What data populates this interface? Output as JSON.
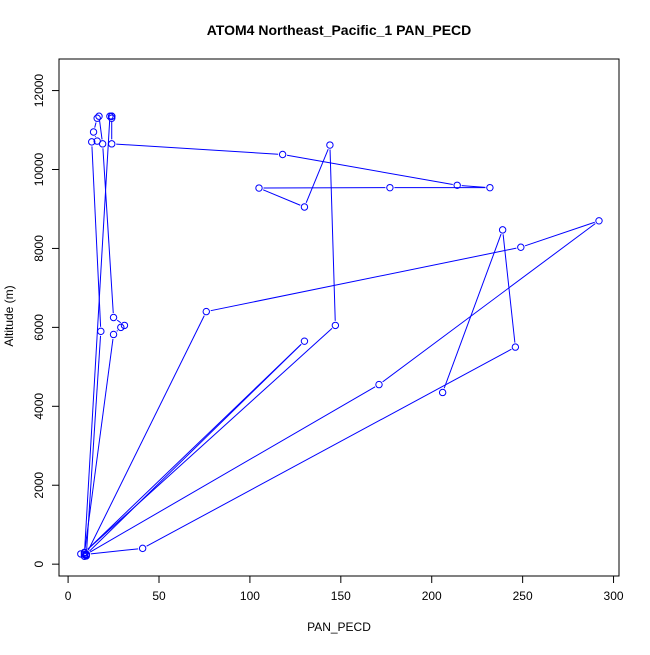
{
  "chart_data": {
    "type": "line",
    "title": "ATOM4 Northeast_Pacific_1 PAN_PECD",
    "xlabel": "PAN_PECD",
    "ylabel": "Altitude (m)",
    "xlim": [
      -5,
      303
    ],
    "ylim": [
      -300,
      12800
    ],
    "xticks": [
      0,
      50,
      100,
      150,
      200,
      250,
      300
    ],
    "yticks": [
      0,
      2000,
      4000,
      6000,
      8000,
      10000,
      12000
    ],
    "grid": false,
    "markers": "open-circle",
    "series": [
      {
        "color": "#0000ff",
        "points": [
          [
            7,
            260
          ],
          [
            9,
            240
          ],
          [
            10,
            230
          ],
          [
            9,
            200
          ],
          [
            10,
            210
          ],
          [
            18,
            5900
          ],
          [
            13,
            10700
          ],
          [
            16,
            10720
          ],
          [
            14,
            10950
          ],
          [
            16,
            11300
          ],
          [
            17,
            11350
          ],
          [
            19,
            10650
          ],
          [
            25,
            6250
          ],
          [
            31,
            6050
          ],
          [
            29,
            6000
          ],
          [
            25,
            5820
          ],
          [
            9,
            280
          ],
          [
            23,
            11350
          ],
          [
            24,
            11350
          ],
          [
            24,
            11300
          ],
          [
            24,
            11350
          ],
          [
            24,
            10650
          ],
          [
            118,
            10380
          ],
          [
            214,
            9600
          ],
          [
            232,
            9540
          ],
          [
            177,
            9540
          ],
          [
            105,
            9530
          ],
          [
            130,
            9050
          ],
          [
            144,
            10620
          ],
          [
            147,
            6050
          ],
          [
            9,
            300
          ],
          [
            130,
            5650
          ],
          [
            10,
            250
          ],
          [
            76,
            6400
          ],
          [
            249,
            8030
          ],
          [
            292,
            8700
          ],
          [
            171,
            4550
          ],
          [
            10,
            250
          ],
          [
            41,
            400
          ],
          [
            246,
            5500
          ],
          [
            239,
            8470
          ],
          [
            206,
            4350
          ]
        ]
      }
    ]
  }
}
